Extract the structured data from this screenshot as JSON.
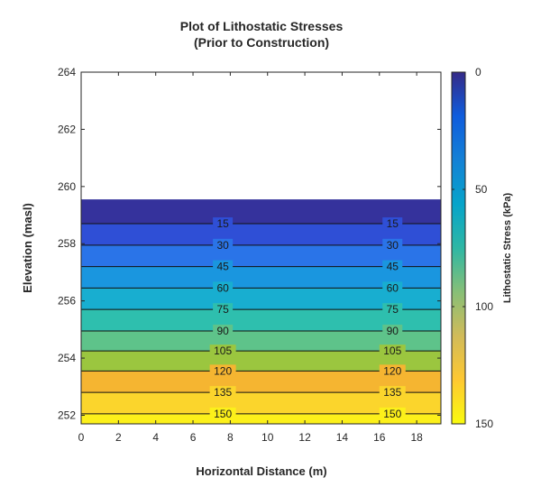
{
  "chart_data": {
    "type": "heatmap",
    "title": "Plot of Lithostatic Stresses",
    "subtitle": "(Prior to Construction)",
    "xlabel": "Horizontal Distance (m)",
    "ylabel": "Elevation (masl)",
    "xlim": [
      0,
      19.3
    ],
    "ylim": [
      251.7,
      264
    ],
    "x_ticks": [
      0,
      2,
      4,
      6,
      8,
      10,
      12,
      14,
      16,
      18
    ],
    "y_ticks": [
      252,
      254,
      256,
      258,
      260,
      262,
      264
    ],
    "ground_surface_elevation": 259.55,
    "bottom_elevation": 251.7,
    "colorbar": {
      "label": "Lithostatic Stress (kPa)",
      "min": 0,
      "max": 150,
      "ticks": [
        0,
        50,
        100,
        150
      ],
      "colormap": "parula",
      "colors": [
        "#352a87",
        "#0f5cdd",
        "#1481d6",
        "#06a4ca",
        "#2eb7a4",
        "#87bf77",
        "#d1bb59",
        "#fec832",
        "#f9fb0e"
      ]
    },
    "contour_levels": [
      15,
      30,
      45,
      60,
      75,
      90,
      105,
      120,
      135,
      150
    ],
    "contour_elevations": [
      258.7,
      257.95,
      257.2,
      256.45,
      255.7,
      254.95,
      254.25,
      253.55,
      252.8,
      252.05
    ],
    "contour_label_x": [
      7.6,
      16.7
    ],
    "band_colors": [
      "#35329c",
      "#2f4fd6",
      "#2a74e8",
      "#1a96df",
      "#18aed0",
      "#2ebfae",
      "#5ec38a",
      "#9bc63f",
      "#f5b531",
      "#fbd52c",
      "#fcf01a"
    ]
  }
}
